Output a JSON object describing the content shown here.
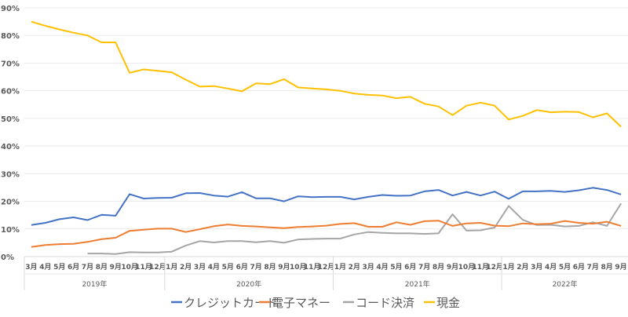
{
  "chart_data": {
    "type": "line",
    "title": "",
    "xlabel": "",
    "ylabel": "",
    "ylim": [
      0,
      90
    ],
    "y_ticks": [
      "0%",
      "10%",
      "20%",
      "30%",
      "40%",
      "50%",
      "60%",
      "70%",
      "80%",
      "90%"
    ],
    "grid": true,
    "legend_position": "bottom",
    "years": [
      {
        "label": "2019年",
        "months": [
          "3月",
          "4月",
          "5月",
          "6月",
          "7月",
          "8月",
          "9月",
          "10月",
          "11月",
          "12月"
        ]
      },
      {
        "label": "2020年",
        "months": [
          "1月",
          "2月",
          "3月",
          "4月",
          "5月",
          "6月",
          "7月",
          "8月",
          "9月",
          "10月",
          "11月",
          "12月"
        ]
      },
      {
        "label": "2021年",
        "months": [
          "1月",
          "2月",
          "3月",
          "4月",
          "5月",
          "6月",
          "7月",
          "8月",
          "9月",
          "10月",
          "11月",
          "12月"
        ]
      },
      {
        "label": "2022年",
        "months": [
          "1月",
          "2月",
          "3月",
          "4月",
          "5月",
          "6月",
          "7月",
          "8月",
          "9月"
        ]
      }
    ],
    "series": [
      {
        "name": "クレジットカード",
        "color": "#4472C4",
        "values": [
          11.4,
          12.2,
          13.5,
          14.2,
          13.2,
          15.1,
          14.8,
          22.6,
          21.0,
          21.2,
          21.3,
          22.9,
          23.0,
          22.1,
          21.7,
          23.3,
          21.1,
          21.1,
          20.0,
          21.8,
          21.5,
          21.6,
          21.6,
          20.7,
          21.6,
          22.3,
          22.0,
          22.1,
          23.6,
          24.1,
          22.1,
          23.4,
          22.1,
          23.5,
          20.9,
          23.6,
          23.6,
          23.8,
          23.4,
          24.0,
          24.9,
          24.1,
          22.5
        ]
      },
      {
        "name": "電子マネー",
        "color": "#ED7D31",
        "values": [
          3.5,
          4.2,
          4.5,
          4.6,
          5.3,
          6.3,
          6.8,
          9.3,
          9.7,
          10.1,
          10.1,
          8.9,
          9.9,
          11.0,
          11.6,
          11.1,
          10.9,
          10.6,
          10.3,
          10.7,
          10.9,
          11.2,
          11.8,
          12.1,
          10.8,
          10.8,
          12.4,
          11.5,
          12.8,
          13.0,
          11.1,
          12.0,
          12.2,
          11.2,
          11.0,
          12.0,
          11.7,
          11.9,
          12.9,
          12.2,
          11.9,
          12.6,
          11.1
        ]
      },
      {
        "name": "コード決済",
        "color": "#A5A5A5",
        "values": [
          null,
          null,
          null,
          null,
          1.1,
          1.1,
          0.9,
          1.6,
          1.5,
          1.5,
          1.8,
          4.0,
          5.6,
          5.1,
          5.6,
          5.6,
          5.2,
          5.6,
          5.0,
          6.2,
          6.4,
          6.5,
          6.5,
          8.0,
          8.9,
          8.6,
          8.4,
          8.4,
          8.2,
          8.4,
          15.3,
          9.4,
          9.5,
          10.5,
          18.3,
          13.3,
          11.4,
          11.5,
          10.9,
          11.1,
          12.4,
          11.1,
          19.2
        ]
      },
      {
        "name": "現金",
        "color": "#FFC000",
        "values": [
          85.0,
          83.5,
          82.2,
          81.0,
          80.0,
          77.5,
          77.5,
          66.5,
          67.7,
          67.2,
          66.7,
          64.0,
          61.5,
          61.7,
          60.8,
          59.8,
          62.7,
          62.4,
          64.2,
          61.2,
          60.8,
          60.5,
          60.0,
          59.0,
          58.5,
          58.3,
          57.3,
          57.8,
          55.3,
          54.3,
          51.2,
          54.6,
          55.7,
          54.6,
          49.6,
          50.9,
          53.0,
          52.2,
          52.4,
          52.3,
          50.4,
          51.8,
          47.0
        ]
      }
    ]
  }
}
